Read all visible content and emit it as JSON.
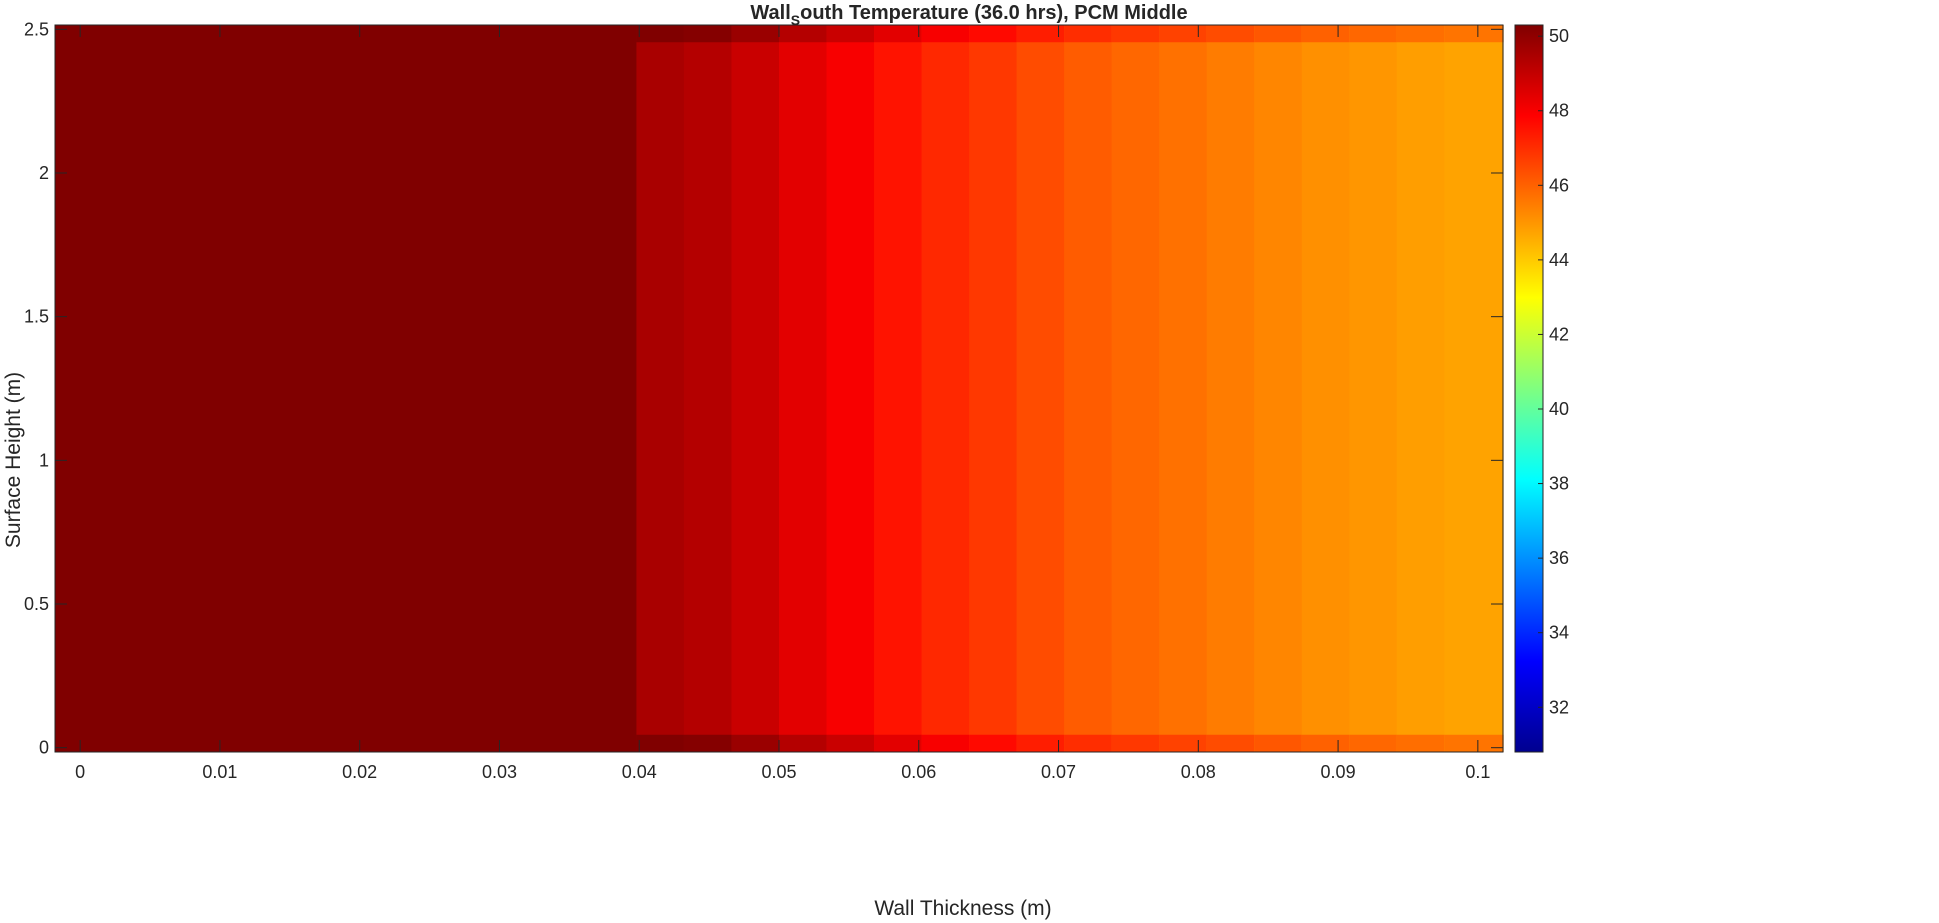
{
  "chart_data": {
    "type": "heatmap",
    "title": {
      "main": "Wall",
      "subscript": "S",
      "rest": "outh  Temperature  (36.0  hrs),  PCM  Middle"
    },
    "xlabel": "Wall Thickness (m)",
    "ylabel": "Surface Height (m)",
    "xlim": [
      -0.0018,
      0.1018
    ],
    "ylim": [
      -0.015,
      2.515
    ],
    "x_ticks": [
      0,
      0.01,
      0.02,
      0.03,
      0.04,
      0.05,
      0.06,
      0.07,
      0.08,
      0.09,
      0.1
    ],
    "x_tick_labels": [
      "0",
      "0.01",
      "0.02",
      "0.03",
      "0.04",
      "0.05",
      "0.06",
      "0.07",
      "0.08",
      "0.09",
      "0.1"
    ],
    "y_ticks": [
      0,
      0.5,
      1,
      1.5,
      2,
      2.5
    ],
    "y_tick_labels": [
      "0",
      "0.5",
      "1",
      "1.5",
      "2",
      "2.5"
    ],
    "colormap": "jet",
    "clim": [
      30.8,
      50.3
    ],
    "colorbar": {
      "ticks": [
        32,
        34,
        36,
        38,
        40,
        42,
        44,
        46,
        48,
        50
      ],
      "tick_labels": [
        "32",
        "34",
        "36",
        "38",
        "40",
        "42",
        "44",
        "46",
        "48",
        "50"
      ]
    },
    "columns": [
      {
        "x_start": -0.0018,
        "x_end": 0.0398,
        "temperature": 50.3
      },
      {
        "x_start": 0.0398,
        "x_end": 0.0432,
        "temperature": 49.5
      },
      {
        "x_start": 0.0432,
        "x_end": 0.0466,
        "temperature": 49.3
      },
      {
        "x_start": 0.0466,
        "x_end": 0.05,
        "temperature": 48.9
      },
      {
        "x_start": 0.05,
        "x_end": 0.0534,
        "temperature": 48.4
      },
      {
        "x_start": 0.0534,
        "x_end": 0.0568,
        "temperature": 48.0
      },
      {
        "x_start": 0.0568,
        "x_end": 0.0602,
        "temperature": 47.5
      },
      {
        "x_start": 0.0602,
        "x_end": 0.0636,
        "temperature": 47.1
      },
      {
        "x_start": 0.0636,
        "x_end": 0.067,
        "temperature": 46.8
      },
      {
        "x_start": 0.067,
        "x_end": 0.0704,
        "temperature": 46.4
      },
      {
        "x_start": 0.0704,
        "x_end": 0.0738,
        "temperature": 46.1
      },
      {
        "x_start": 0.0738,
        "x_end": 0.0772,
        "temperature": 45.9
      },
      {
        "x_start": 0.0772,
        "x_end": 0.0806,
        "temperature": 45.7
      },
      {
        "x_start": 0.0806,
        "x_end": 0.084,
        "temperature": 45.5
      },
      {
        "x_start": 0.084,
        "x_end": 0.0874,
        "temperature": 45.3
      },
      {
        "x_start": 0.0874,
        "x_end": 0.0908,
        "temperature": 45.1
      },
      {
        "x_start": 0.0908,
        "x_end": 0.0942,
        "temperature": 45.0
      },
      {
        "x_start": 0.0942,
        "x_end": 0.0976,
        "temperature": 44.85
      },
      {
        "x_start": 0.0976,
        "x_end": 0.1018,
        "temperature": 44.75
      }
    ],
    "edge_bands": [
      {
        "y_start": 2.455,
        "y_end": 2.515,
        "temperature_delta": 0.9
      },
      {
        "y_start": -0.015,
        "y_end": 0.045,
        "temperature_delta": 0.9
      }
    ]
  },
  "colors": {
    "axes_box": "#262626",
    "background": "#ffffff"
  }
}
